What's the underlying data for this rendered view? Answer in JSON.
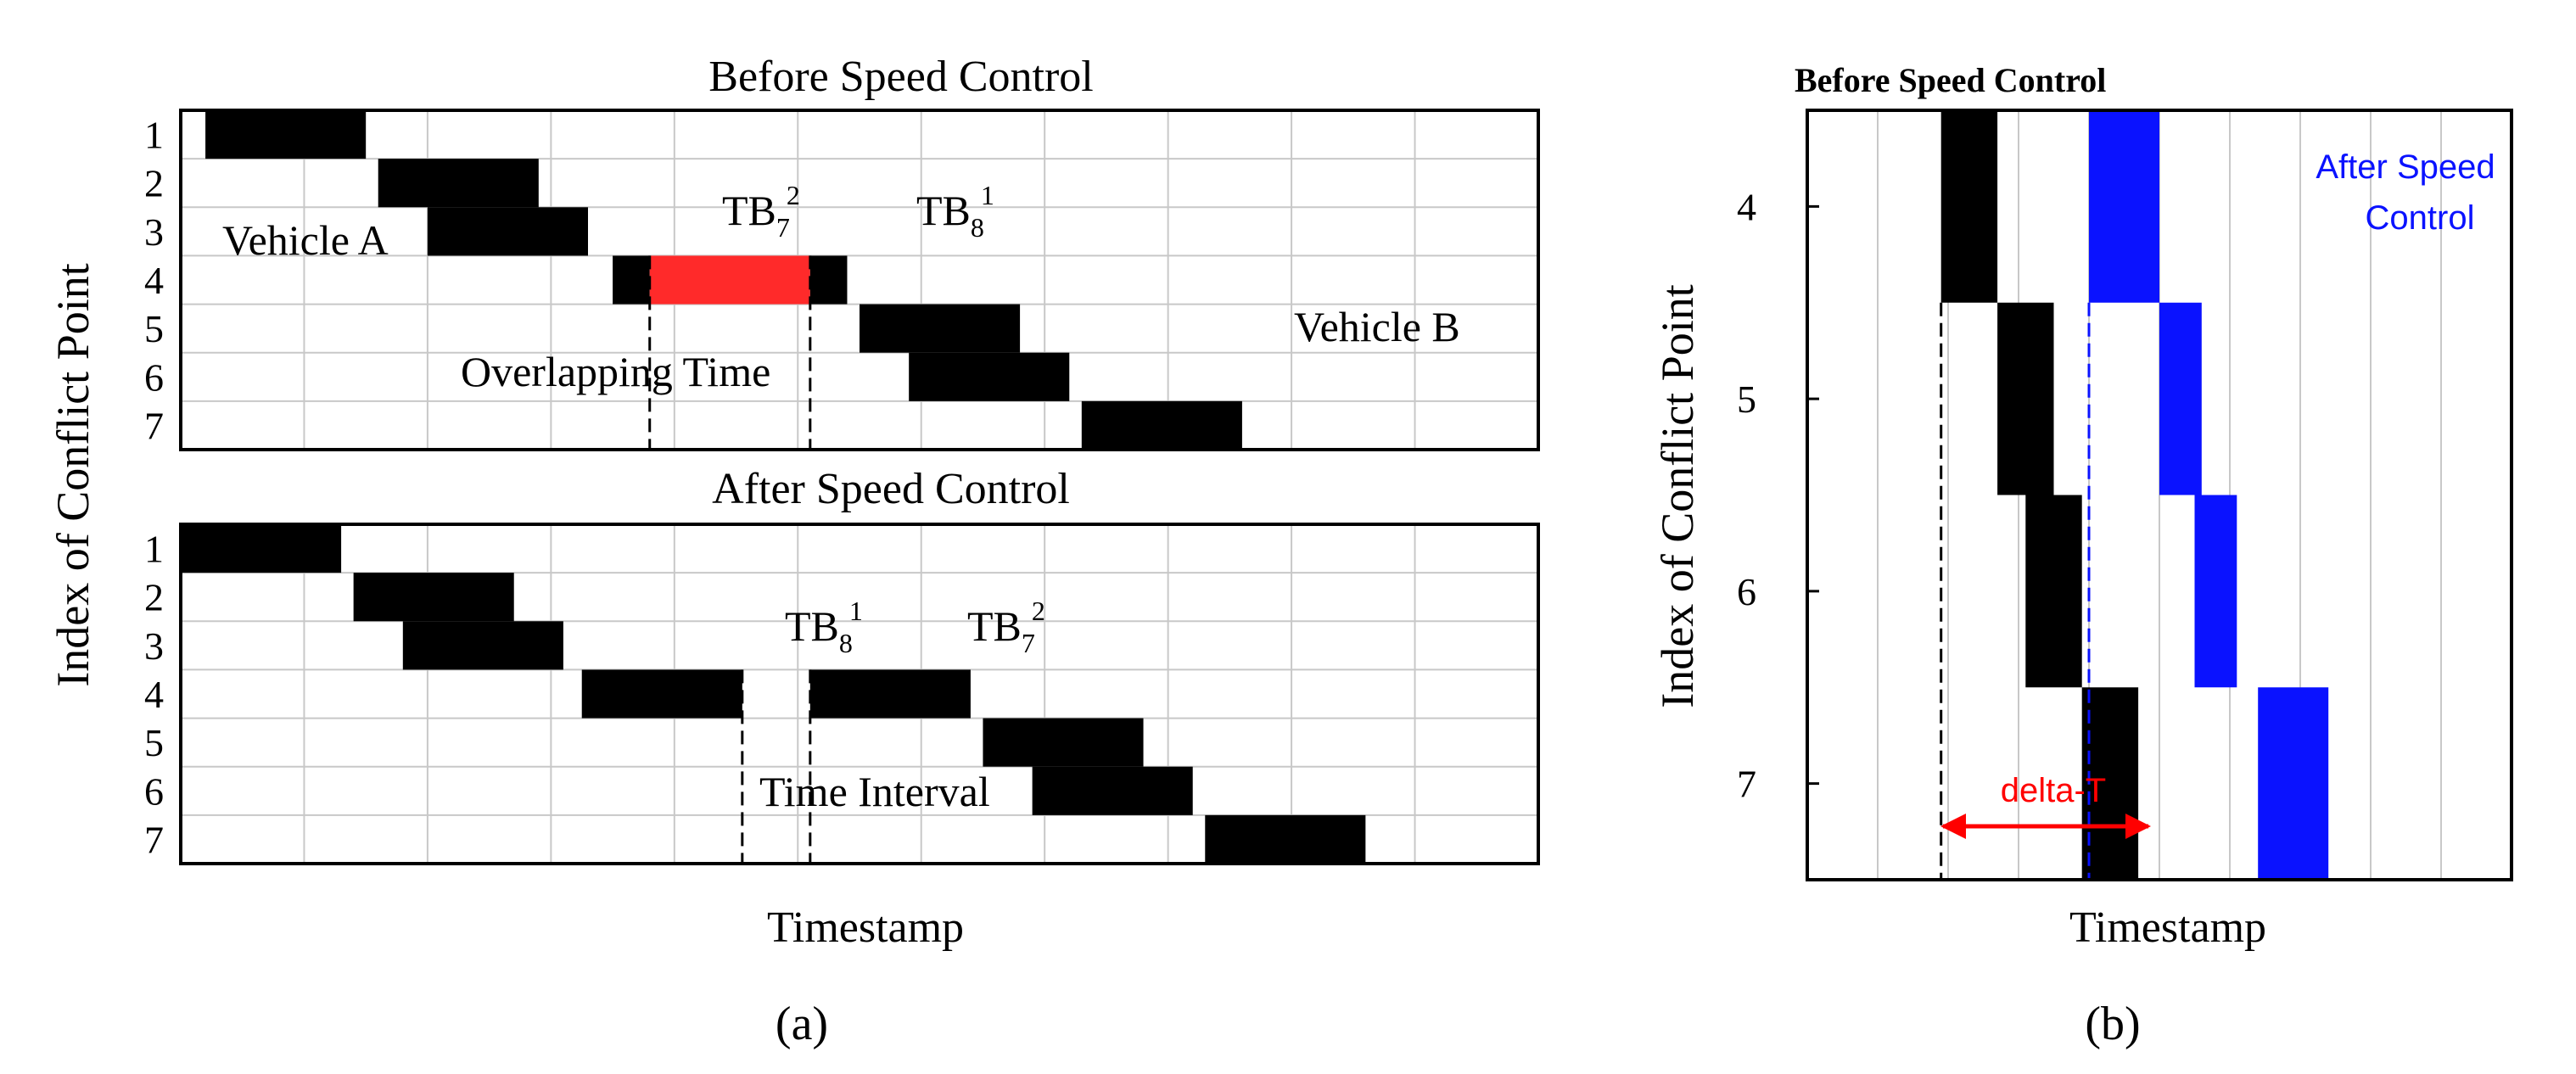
{
  "figure_labels": {
    "a": "(a)",
    "b": "(b)"
  },
  "colors": {
    "vehicle": "#000000",
    "overlap": "#ff2a2a",
    "after": "#0a12ff",
    "delta": "#ff0000",
    "grid": "#c8c8c8"
  },
  "chart_data": [
    {
      "id": "a_top",
      "type": "gantt",
      "title": "Before Speed Control",
      "ylabel": "Index of Conflict Point",
      "xlabel": "",
      "y_categories": [
        "1",
        "2",
        "3",
        "4",
        "5",
        "6",
        "7"
      ],
      "xlim": [
        0,
        110
      ],
      "grid": true,
      "bars": [
        {
          "row": 1,
          "start": 2,
          "end": 15,
          "color": "black"
        },
        {
          "row": 2,
          "start": 16,
          "end": 29,
          "color": "black"
        },
        {
          "row": 3,
          "start": 20,
          "end": 33,
          "color": "black"
        },
        {
          "row": 4,
          "start": 35,
          "end": 38,
          "color": "black"
        },
        {
          "row": 4,
          "start": 38,
          "end": 51,
          "color": "red"
        },
        {
          "row": 4,
          "start": 51,
          "end": 54,
          "color": "black"
        },
        {
          "row": 5,
          "start": 55,
          "end": 68,
          "color": "black"
        },
        {
          "row": 6,
          "start": 59,
          "end": 72,
          "color": "black"
        },
        {
          "row": 7,
          "start": 73,
          "end": 86,
          "color": "black"
        }
      ],
      "vlines": [
        38,
        51
      ],
      "annotations": {
        "vehicle_a": "Vehicle A",
        "vehicle_b": "Vehicle B",
        "overlap": "Overlapping Time",
        "tb72": {
          "base": "TB",
          "sub": "7",
          "sup": "2"
        },
        "tb81": {
          "base": "TB",
          "sub": "8",
          "sup": "1"
        }
      }
    },
    {
      "id": "a_bottom",
      "type": "gantt",
      "title": "After Speed Control",
      "ylabel": "",
      "xlabel": "Timestamp",
      "y_categories": [
        "1",
        "2",
        "3",
        "4",
        "5",
        "6",
        "7"
      ],
      "xlim": [
        0,
        110
      ],
      "grid": true,
      "bars": [
        {
          "row": 1,
          "start": 0,
          "end": 13,
          "color": "black"
        },
        {
          "row": 2,
          "start": 14,
          "end": 27,
          "color": "black"
        },
        {
          "row": 3,
          "start": 18,
          "end": 31,
          "color": "black"
        },
        {
          "row": 4,
          "start": 32.5,
          "end": 45.5,
          "color": "black"
        },
        {
          "row": 4,
          "start": 51,
          "end": 64,
          "color": "black"
        },
        {
          "row": 5,
          "start": 65,
          "end": 78,
          "color": "black"
        },
        {
          "row": 6,
          "start": 69,
          "end": 82,
          "color": "black"
        },
        {
          "row": 7,
          "start": 83,
          "end": 96,
          "color": "black"
        }
      ],
      "vlines": [
        45.5,
        51
      ],
      "annotations": {
        "interval": "Time Interval",
        "tb81": {
          "base": "TB",
          "sub": "8",
          "sup": "1"
        },
        "tb72": {
          "base": "TB",
          "sub": "7",
          "sup": "2"
        }
      }
    },
    {
      "id": "b",
      "type": "gantt",
      "title": "Before Speed Control",
      "ylabel": "Index of Conflict Point",
      "xlabel": "Timestamp",
      "y_categories": [
        "4",
        "5",
        "6",
        "7"
      ],
      "y_range": [
        3.5,
        7.5
      ],
      "xlim": [
        0,
        100
      ],
      "grid": true,
      "series": [
        {
          "name": "Before Speed Control",
          "color": "black",
          "bars": [
            {
              "row": 4,
              "start": 19,
              "end": 27
            },
            {
              "row": 5,
              "start": 27,
              "end": 35
            },
            {
              "row": 6,
              "start": 31,
              "end": 39
            },
            {
              "row": 7,
              "start": 39,
              "end": 47
            }
          ]
        },
        {
          "name": "After Speed Control",
          "color": "blue",
          "bars": [
            {
              "row": 4,
              "start": 40,
              "end": 50
            },
            {
              "row": 5,
              "start": 50,
              "end": 56
            },
            {
              "row": 6,
              "start": 55,
              "end": 61
            },
            {
              "row": 7,
              "start": 64,
              "end": 74
            }
          ]
        }
      ],
      "vlines": [
        {
          "x": 19,
          "color": "black"
        },
        {
          "x": 40,
          "color": "blue"
        }
      ],
      "annotations": {
        "after_line1": "After Speed",
        "after_line2": "Control",
        "delta": "delta-T"
      }
    }
  ]
}
